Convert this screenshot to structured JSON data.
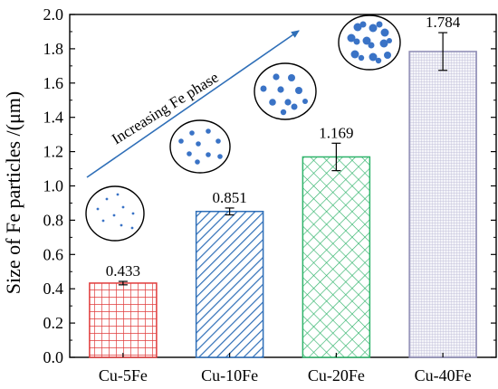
{
  "chart_data": {
    "type": "bar",
    "categories": [
      "Cu-5Fe",
      "Cu-10Fe",
      "Cu-20Fe",
      "Cu-40Fe"
    ],
    "values": [
      0.433,
      0.851,
      1.169,
      1.784
    ],
    "value_labels": [
      "0.433",
      "0.851",
      "1.169",
      "1.784"
    ],
    "errors": [
      0.01,
      0.02,
      0.08,
      0.11
    ],
    "ylabel": "Size of Fe particles /(μm)",
    "ylim": [
      0.0,
      2.0
    ],
    "yticks": [
      "0.0",
      "0.2",
      "0.4",
      "0.6",
      "0.8",
      "1.0",
      "1.2",
      "1.4",
      "1.6",
      "1.8",
      "2.0"
    ],
    "bar_colors": [
      "#e03b3b",
      "#2f6fb8",
      "#2fb36a",
      "#8e8cb5"
    ],
    "bar_patterns": [
      "grid",
      "diagonal",
      "crosshatch",
      "fine-grid"
    ],
    "annotation": "Increasing Fe phase",
    "annotation_color": "#2f6fb8",
    "particle_color": "#3a73c6"
  }
}
